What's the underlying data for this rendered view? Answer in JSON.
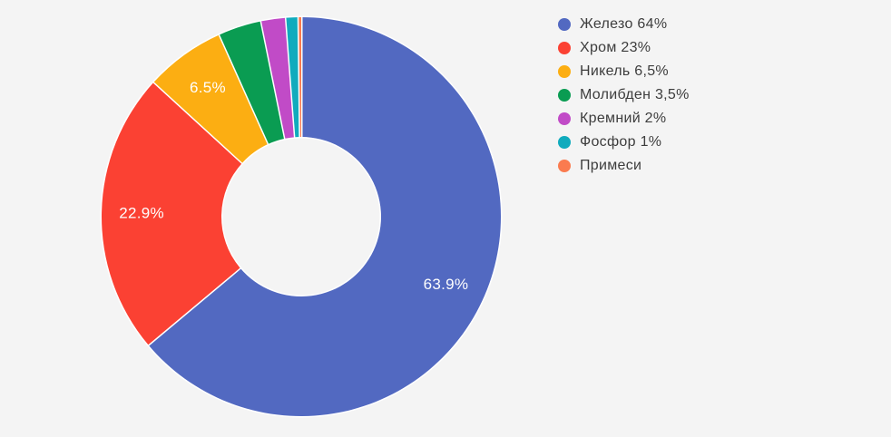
{
  "colors": {
    "background": "#f4f4f4",
    "slice_border": "#ffffff",
    "slice_label_text": "#fefefe",
    "legend_text": "#3d3d3d"
  },
  "chart_data": {
    "type": "pie",
    "subtype": "donut",
    "start_angle": "top",
    "direction": "clockwise",
    "legend_position": "right",
    "series": [
      {
        "id": "iron",
        "name": "Железо",
        "value": 63.9,
        "slice_label": "63.9%",
        "legend_label": "Железо 64%",
        "color": "#5269c1"
      },
      {
        "id": "chromium",
        "name": "Хром",
        "value": 22.9,
        "slice_label": "22.9%",
        "legend_label": "Хром 23%",
        "color": "#fb4133"
      },
      {
        "id": "nickel",
        "name": "Никель",
        "value": 6.5,
        "slice_label": "6.5%",
        "legend_label": "Никель 6,5%",
        "color": "#fcae12"
      },
      {
        "id": "molybdenum",
        "name": "Молибден",
        "value": 3.5,
        "legend_label": "Молибден 3,5%",
        "color": "#0a9c52"
      },
      {
        "id": "silicon",
        "name": "Кремний",
        "value": 2,
        "legend_label": "Кремний 2%",
        "color": "#c14bc7"
      },
      {
        "id": "phosphorus",
        "name": "Фосфор",
        "value": 1,
        "legend_label": "Фосфор 1%",
        "color": "#10abbd"
      },
      {
        "id": "impurities",
        "name": "Примеси",
        "value": 0.2,
        "legend_label": "Примеси",
        "color": "#fa7b4f"
      }
    ]
  }
}
